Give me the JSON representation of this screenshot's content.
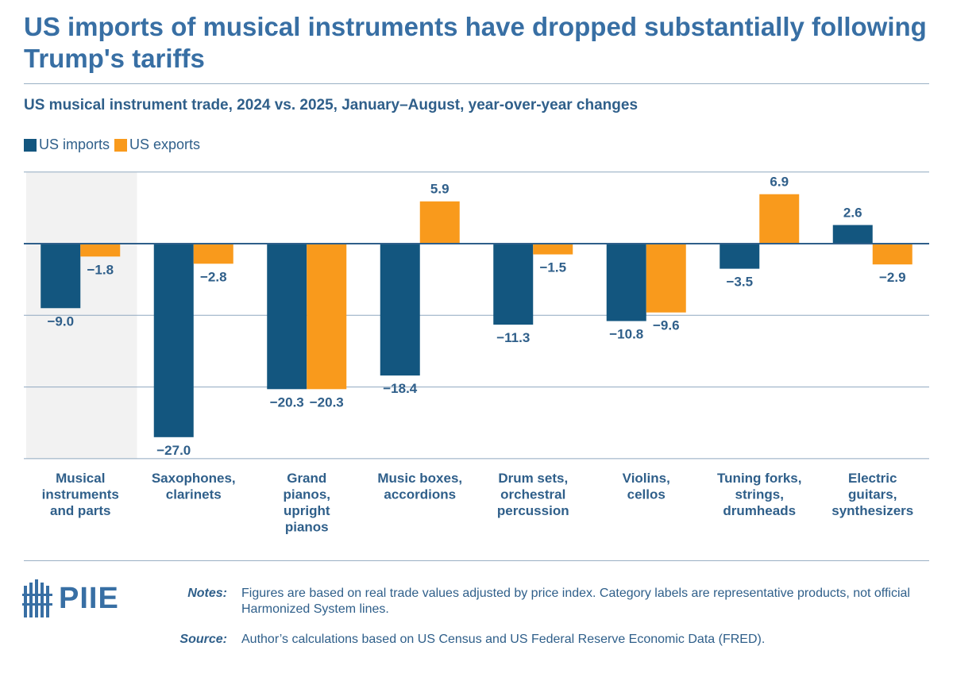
{
  "title": "US imports of musical instruments have dropped substantially following Trump's tariffs",
  "subtitle": "US musical instrument trade, 2024 vs. 2025, January–August, year-over-year changes",
  "legend": [
    {
      "label": "US imports",
      "color": "#13567f"
    },
    {
      "label": "US exports",
      "color": "#f99a1c"
    }
  ],
  "chart_data": {
    "type": "bar",
    "title": "US musical instrument trade, 2024 vs. 2025, January–August, year-over-year changes",
    "xlabel": "",
    "ylabel": "",
    "ylim": [
      -30,
      10
    ],
    "grid": true,
    "legend_position": "top-left",
    "categories": [
      "Musical instruments and parts",
      "Saxophones, clarinets",
      "Grand pianos, upright pianos",
      "Music boxes, accordions",
      "Drum sets, orchestral percussion",
      "Violins, cellos",
      "Tuning forks, strings, drumheads",
      "Electric guitars, synthesizers"
    ],
    "category_label_lines": [
      [
        "Musical",
        "instruments",
        "and parts"
      ],
      [
        "Saxophones,",
        "clarinets"
      ],
      [
        "Grand",
        "pianos,",
        "upright",
        "pianos"
      ],
      [
        "Music boxes,",
        "accordions"
      ],
      [
        "Drum sets,",
        "orchestral",
        "percussion"
      ],
      [
        "Violins,",
        "cellos"
      ],
      [
        "Tuning forks,",
        "strings,",
        "drumheads"
      ],
      [
        "Electric",
        "guitars,",
        "synthesizers"
      ]
    ],
    "highlighted_category": "Musical instruments and parts",
    "series": [
      {
        "name": "US imports",
        "color": "#13567f",
        "values": [
          -9.0,
          -27.0,
          -20.3,
          -18.4,
          -11.3,
          -10.8,
          -3.5,
          2.6
        ],
        "labels": [
          "−9.0",
          "−27.0",
          "−20.3",
          "−18.4",
          "−11.3",
          "−10.8",
          "−3.5",
          "2.6"
        ]
      },
      {
        "name": "US exports",
        "color": "#f99a1c",
        "values": [
          -1.8,
          -2.8,
          -20.3,
          5.9,
          -1.5,
          -9.6,
          6.9,
          -2.9
        ],
        "labels": [
          "−1.8",
          "−2.8",
          "−20.3",
          "5.9",
          "−1.5",
          "−9.6",
          "6.9",
          "−2.9"
        ]
      }
    ]
  },
  "footer": {
    "logo_text": "PIIE",
    "notes_label": "Notes:",
    "notes_text": "Figures are based on real trade values adjusted by price index. Category labels are representative products, not official Harmonized System lines.",
    "source_label": "Source:",
    "source_text": "Author’s calculations based on US Census and US Federal Reserve Economic Data (FRED)."
  }
}
